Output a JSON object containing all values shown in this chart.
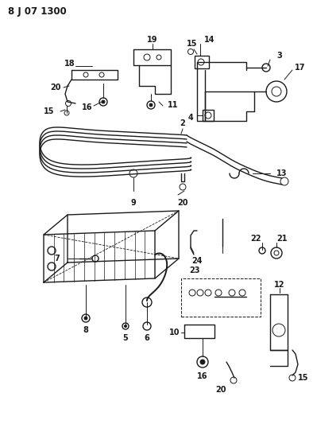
{
  "title": "8 J 07 1300",
  "bg_color": "#ffffff",
  "line_color": "#1a1a1a",
  "fig_width": 3.94,
  "fig_height": 5.33,
  "dpi": 100
}
